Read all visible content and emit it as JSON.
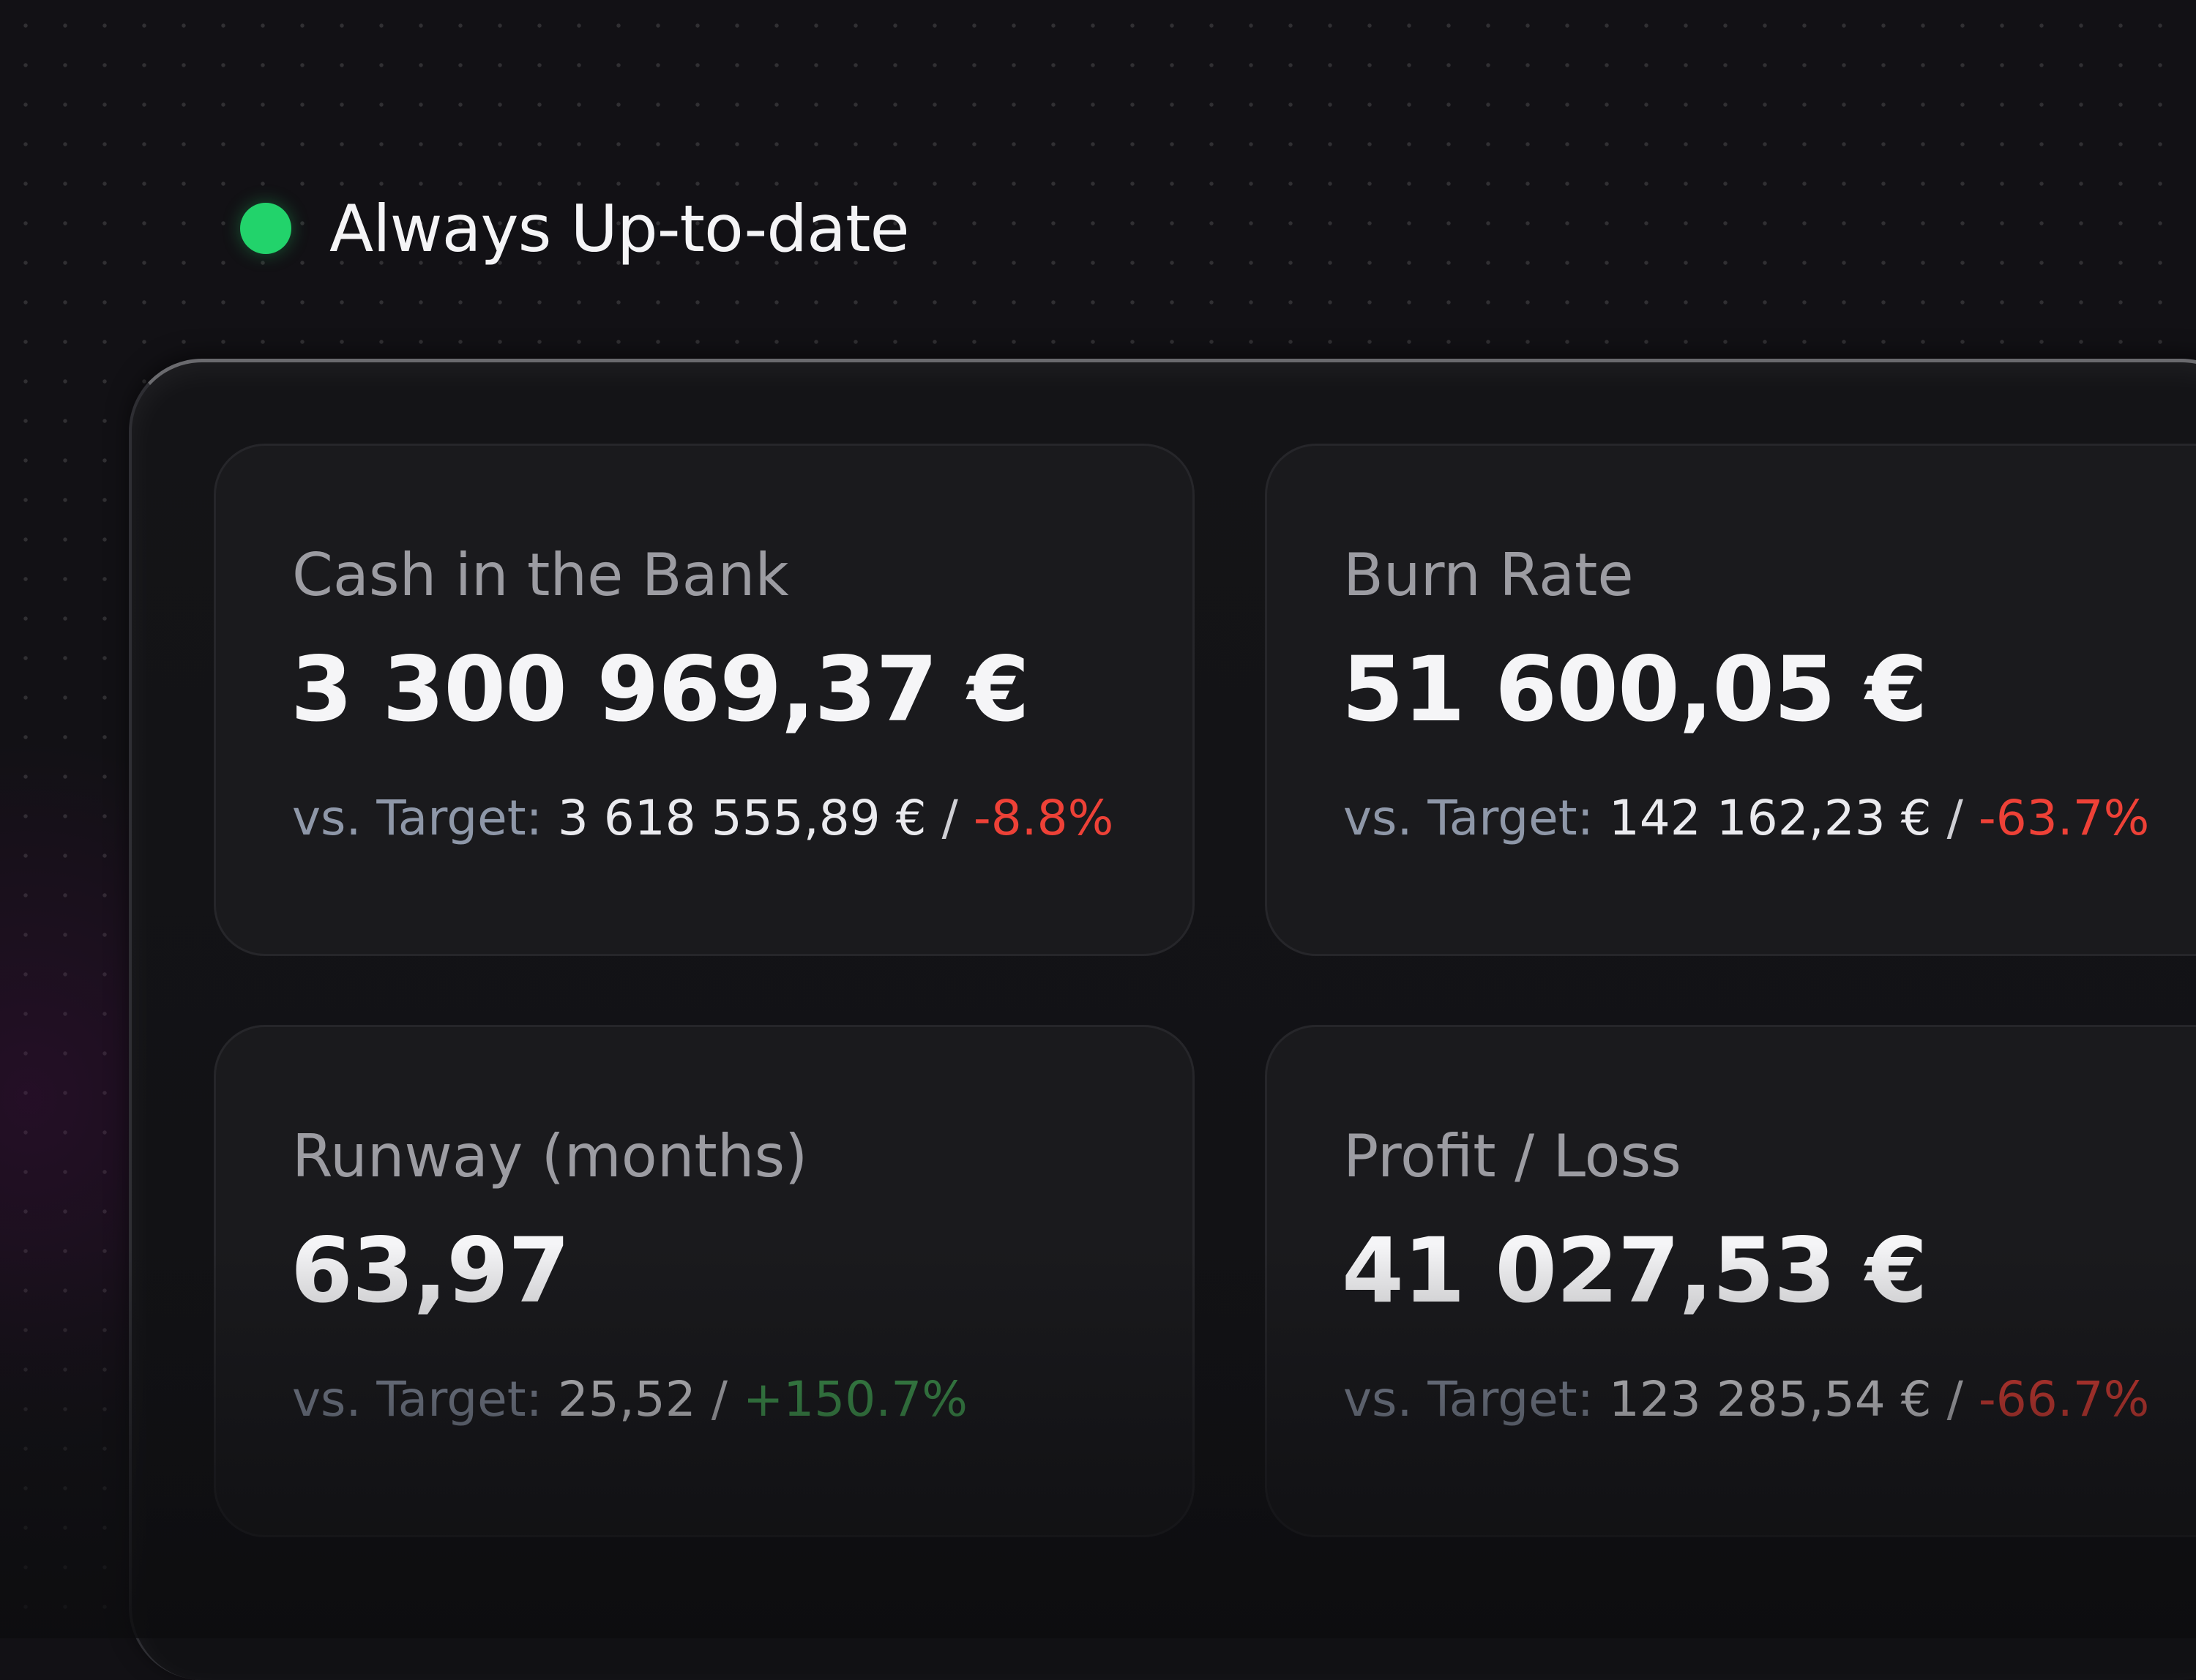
{
  "colors": {
    "status_green": "#22d36b",
    "negative_red": "#ee4137",
    "positive_green": "#45a856",
    "background": "#121115",
    "card_background": "#1a1a1d"
  },
  "status": {
    "label": "Always Up-to-date",
    "icon": "status-dot-icon"
  },
  "cards": [
    {
      "title": "Cash in the Bank",
      "value": "3 300 969,37 €",
      "target_label": "vs. Target:",
      "target_value": "3 618 555,89 €",
      "separator": "/",
      "delta": "-8.8%",
      "delta_trend": "negative"
    },
    {
      "title": "Burn Rate",
      "value": "51 600,05 €",
      "target_label": "vs. Target:",
      "target_value": "142 162,23 €",
      "separator": "/",
      "delta": "-63.7%",
      "delta_trend": "negative"
    },
    {
      "title": "Runway (months)",
      "value": "63,97",
      "target_label": "vs. Target:",
      "target_value": "25,52",
      "separator": "/",
      "delta": "+150.7%",
      "delta_trend": "positive"
    },
    {
      "title": "Profit / Loss",
      "value": "41 027,53 €",
      "target_label": "vs. Target:",
      "target_value": "123 285,54 €",
      "separator": "/",
      "delta": "-66.7%",
      "delta_trend": "negative"
    }
  ]
}
